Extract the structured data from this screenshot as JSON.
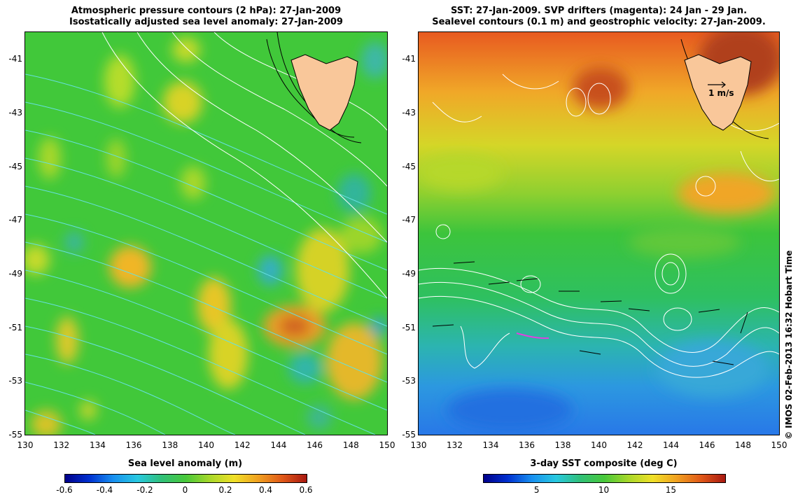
{
  "left_panel": {
    "title_line1": "Atmospheric pressure contours (2 hPa): 27-Jan-2009",
    "title_line2": "Isostatically adjusted sea level anomaly: 27-Jan-2009",
    "colorbar": {
      "label": "Sea level anomaly (m)",
      "ticks": [
        "-0.6",
        "-0.4",
        "-0.2",
        "0",
        "0.2",
        "0.4",
        "0.6"
      ],
      "min": -0.6,
      "max": 0.6
    }
  },
  "right_panel": {
    "title_line1": "SST: 27-Jan-2009. SVP drifters (magenta): 24 Jan - 29 Jan.",
    "title_line2": "Sealevel contours (0.1 m) and geostrophic velocity: 27-Jan-2009.",
    "velocity_scale_label": "1 m/s",
    "colorbar": {
      "label": "3-day SST composite (deg C)",
      "ticks": [
        "5",
        "10",
        "15"
      ],
      "min": 1,
      "max": 19
    }
  },
  "axes": {
    "lon_ticks": [
      "130",
      "132",
      "134",
      "136",
      "138",
      "140",
      "142",
      "144",
      "146",
      "148",
      "150"
    ],
    "lat_ticks": [
      "-41",
      "-43",
      "-45",
      "-47",
      "-49",
      "-51",
      "-53",
      "-55"
    ],
    "lon_range": [
      130,
      150
    ],
    "lat_range": [
      -55,
      -40
    ]
  },
  "credit": "© IMOS 02-Feb-2013 16:32 Hobart Time",
  "colors": {
    "land": "#f9c79a",
    "drifter": "#e040e0",
    "pressure_contour": "#66e0e0",
    "sea_level_contour": "#ffffff"
  }
}
